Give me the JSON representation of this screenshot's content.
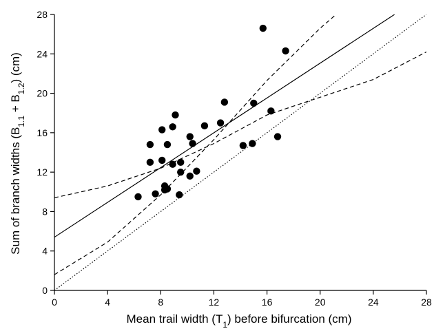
{
  "chart_data": {
    "type": "scatter",
    "title": "",
    "xlabel": {
      "main": "Mean trail width (T",
      "sub": "1",
      "tail": ") before bifurcation (cm)"
    },
    "ylabel": {
      "p1": "Sum of branch widths (B",
      "s1": "1.1",
      "p2": " + B",
      "s2": "1.2",
      "p3": ") (cm)"
    },
    "xlim": [
      0,
      28
    ],
    "ylim": [
      0,
      28
    ],
    "xticks": [
      "0",
      "4",
      "8",
      "12",
      "16",
      "20",
      "24",
      "28"
    ],
    "yticks": [
      "0",
      "4",
      "8",
      "12",
      "16",
      "20",
      "24",
      "28"
    ],
    "grid": false,
    "points": [
      {
        "x": 6.3,
        "y": 9.5
      },
      {
        "x": 7.2,
        "y": 14.8
      },
      {
        "x": 7.2,
        "y": 13.0
      },
      {
        "x": 7.6,
        "y": 9.8
      },
      {
        "x": 8.1,
        "y": 16.3
      },
      {
        "x": 8.1,
        "y": 13.2
      },
      {
        "x": 8.3,
        "y": 10.2
      },
      {
        "x": 8.3,
        "y": 10.6
      },
      {
        "x": 8.5,
        "y": 10.3
      },
      {
        "x": 8.5,
        "y": 14.8
      },
      {
        "x": 8.9,
        "y": 16.6
      },
      {
        "x": 8.9,
        "y": 12.8
      },
      {
        "x": 9.1,
        "y": 17.8
      },
      {
        "x": 9.4,
        "y": 9.7
      },
      {
        "x": 9.5,
        "y": 12.0
      },
      {
        "x": 9.5,
        "y": 13.0
      },
      {
        "x": 10.2,
        "y": 15.6
      },
      {
        "x": 10.2,
        "y": 11.6
      },
      {
        "x": 10.4,
        "y": 14.9
      },
      {
        "x": 10.7,
        "y": 12.1
      },
      {
        "x": 11.3,
        "y": 16.7
      },
      {
        "x": 12.5,
        "y": 17.0
      },
      {
        "x": 12.8,
        "y": 19.1
      },
      {
        "x": 14.2,
        "y": 14.7
      },
      {
        "x": 14.9,
        "y": 14.9
      },
      {
        "x": 15.0,
        "y": 19.0
      },
      {
        "x": 15.7,
        "y": 26.6
      },
      {
        "x": 16.3,
        "y": 18.2
      },
      {
        "x": 16.8,
        "y": 15.6
      },
      {
        "x": 17.4,
        "y": 24.3
      }
    ],
    "lines": [
      {
        "style": "solid",
        "x": [
          0,
          25.6
        ],
        "y": [
          5.4,
          28
        ]
      },
      {
        "style": "dotted",
        "x": [
          0,
          28
        ],
        "y": [
          0,
          28
        ]
      },
      {
        "style": "dashed",
        "x": [
          0,
          4,
          8,
          12,
          16,
          20,
          24,
          28
        ],
        "y": [
          9.4,
          10.6,
          12.4,
          14.9,
          17.8,
          19.6,
          21.4,
          24.2
        ]
      },
      {
        "style": "dashed",
        "x": [
          0,
          4,
          8,
          12,
          16,
          20,
          21.2
        ],
        "y": [
          1.6,
          4.9,
          9.7,
          15.3,
          21.3,
          26.6,
          28
        ]
      }
    ]
  }
}
